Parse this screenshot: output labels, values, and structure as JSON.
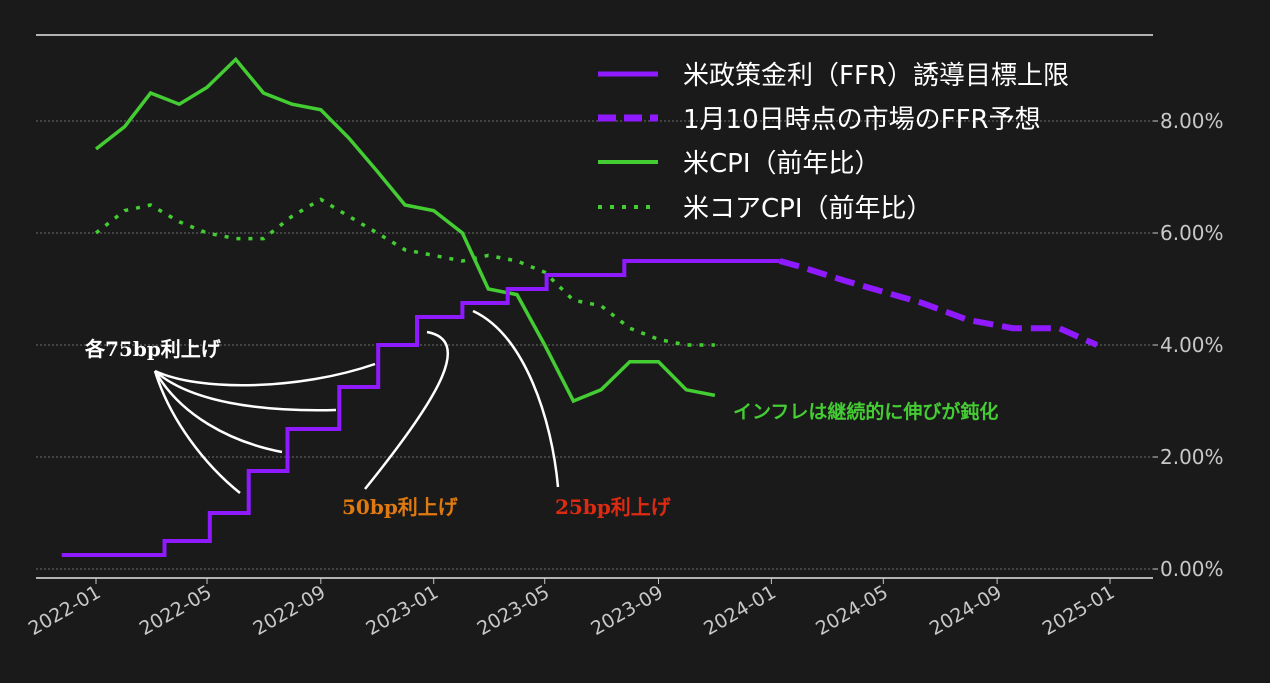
{
  "chart_data": {
    "type": "line",
    "x_axis": {
      "ticks": [
        "2022-01",
        "2022-05",
        "2022-09",
        "2023-01",
        "2023-05",
        "2023-09",
        "2024-01",
        "2024-05",
        "2024-09",
        "2025-01"
      ]
    },
    "y_axis": {
      "position": "right",
      "ticks": [
        "0.00%",
        "2.00%",
        "4.00%",
        "6.00%",
        "8.00%"
      ],
      "range": [
        0,
        9.2
      ]
    },
    "series": [
      {
        "name": "米政策金利（FFR）誘導目標上限",
        "style": "solid-step",
        "color": "#8f1aff",
        "points": [
          [
            "2021-11-25",
            0.25
          ],
          [
            "2022-03-16",
            0.25
          ],
          [
            "2022-03-16",
            0.5
          ],
          [
            "2022-05-04",
            0.5
          ],
          [
            "2022-05-04",
            1.0
          ],
          [
            "2022-06-15",
            1.0
          ],
          [
            "2022-06-15",
            1.75
          ],
          [
            "2022-07-27",
            1.75
          ],
          [
            "2022-07-27",
            2.5
          ],
          [
            "2022-09-21",
            2.5
          ],
          [
            "2022-09-21",
            3.25
          ],
          [
            "2022-11-02",
            3.25
          ],
          [
            "2022-11-02",
            4.0
          ],
          [
            "2022-12-14",
            4.0
          ],
          [
            "2022-12-14",
            4.5
          ],
          [
            "2023-02-01",
            4.5
          ],
          [
            "2023-02-01",
            4.75
          ],
          [
            "2023-03-22",
            4.75
          ],
          [
            "2023-03-22",
            5.0
          ],
          [
            "2023-05-03",
            5.0
          ],
          [
            "2023-05-03",
            5.25
          ],
          [
            "2023-07-26",
            5.25
          ],
          [
            "2023-07-26",
            5.5
          ],
          [
            "2024-01-10",
            5.5
          ]
        ]
      },
      {
        "name": "1月10日時点の市場のFFR予想",
        "style": "dashed",
        "color": "#8f1aff",
        "points": [
          [
            "2024-01-10",
            5.5
          ],
          [
            "2024-02-01",
            5.4
          ],
          [
            "2024-03-20",
            5.15
          ],
          [
            "2024-05-01",
            4.95
          ],
          [
            "2024-06-12",
            4.75
          ],
          [
            "2024-07-31",
            4.45
          ],
          [
            "2024-09-18",
            4.3
          ],
          [
            "2024-11-07",
            4.3
          ],
          [
            "2024-12-18",
            4.0
          ]
        ]
      },
      {
        "name": "米CPI（前年比）",
        "style": "solid",
        "color": "#44cc33",
        "points": [
          [
            "2022-01-01",
            7.5
          ],
          [
            "2022-02-01",
            7.9
          ],
          [
            "2022-03-01",
            8.5
          ],
          [
            "2022-04-01",
            8.3
          ],
          [
            "2022-05-01",
            8.6
          ],
          [
            "2022-06-01",
            9.1
          ],
          [
            "2022-07-01",
            8.5
          ],
          [
            "2022-08-01",
            8.3
          ],
          [
            "2022-09-01",
            8.2
          ],
          [
            "2022-10-01",
            7.7
          ],
          [
            "2022-11-01",
            7.1
          ],
          [
            "2022-12-01",
            6.5
          ],
          [
            "2023-01-01",
            6.4
          ],
          [
            "2023-02-01",
            6.0
          ],
          [
            "2023-03-01",
            5.0
          ],
          [
            "2023-04-01",
            4.9
          ],
          [
            "2023-05-01",
            4.0
          ],
          [
            "2023-06-01",
            3.0
          ],
          [
            "2023-07-01",
            3.2
          ],
          [
            "2023-08-01",
            3.7
          ],
          [
            "2023-09-01",
            3.7
          ],
          [
            "2023-10-01",
            3.2
          ],
          [
            "2023-11-01",
            3.1
          ]
        ]
      },
      {
        "name": "米コアCPI（前年比）",
        "style": "dotted",
        "color": "#44cc33",
        "points": [
          [
            "2022-01-01",
            6.0
          ],
          [
            "2022-02-01",
            6.4
          ],
          [
            "2022-03-01",
            6.5
          ],
          [
            "2022-04-01",
            6.2
          ],
          [
            "2022-05-01",
            6.0
          ],
          [
            "2022-06-01",
            5.9
          ],
          [
            "2022-07-01",
            5.9
          ],
          [
            "2022-08-01",
            6.3
          ],
          [
            "2022-09-01",
            6.6
          ],
          [
            "2022-10-01",
            6.3
          ],
          [
            "2022-11-01",
            6.0
          ],
          [
            "2022-12-01",
            5.7
          ],
          [
            "2023-01-01",
            5.6
          ],
          [
            "2023-02-01",
            5.5
          ],
          [
            "2023-03-01",
            5.6
          ],
          [
            "2023-04-01",
            5.5
          ],
          [
            "2023-05-01",
            5.3
          ],
          [
            "2023-06-01",
            4.8
          ],
          [
            "2023-07-01",
            4.7
          ],
          [
            "2023-08-01",
            4.3
          ],
          [
            "2023-09-01",
            4.1
          ],
          [
            "2023-10-01",
            4.0
          ],
          [
            "2023-11-01",
            4.0
          ]
        ]
      }
    ],
    "legend": {
      "placement": "top-right"
    },
    "grid": true,
    "annotations": {
      "hike75": {
        "text": "各75bp利上げ",
        "color": "#ffffff"
      },
      "hike50": {
        "text": "50bp利上げ",
        "color": "#e07a10"
      },
      "hike25": {
        "text": "25bp利上げ",
        "color": "#dd2a10"
      },
      "inflation": {
        "text": "インフレは継続的に伸びが鈍化",
        "color": "#44cc33"
      }
    }
  }
}
